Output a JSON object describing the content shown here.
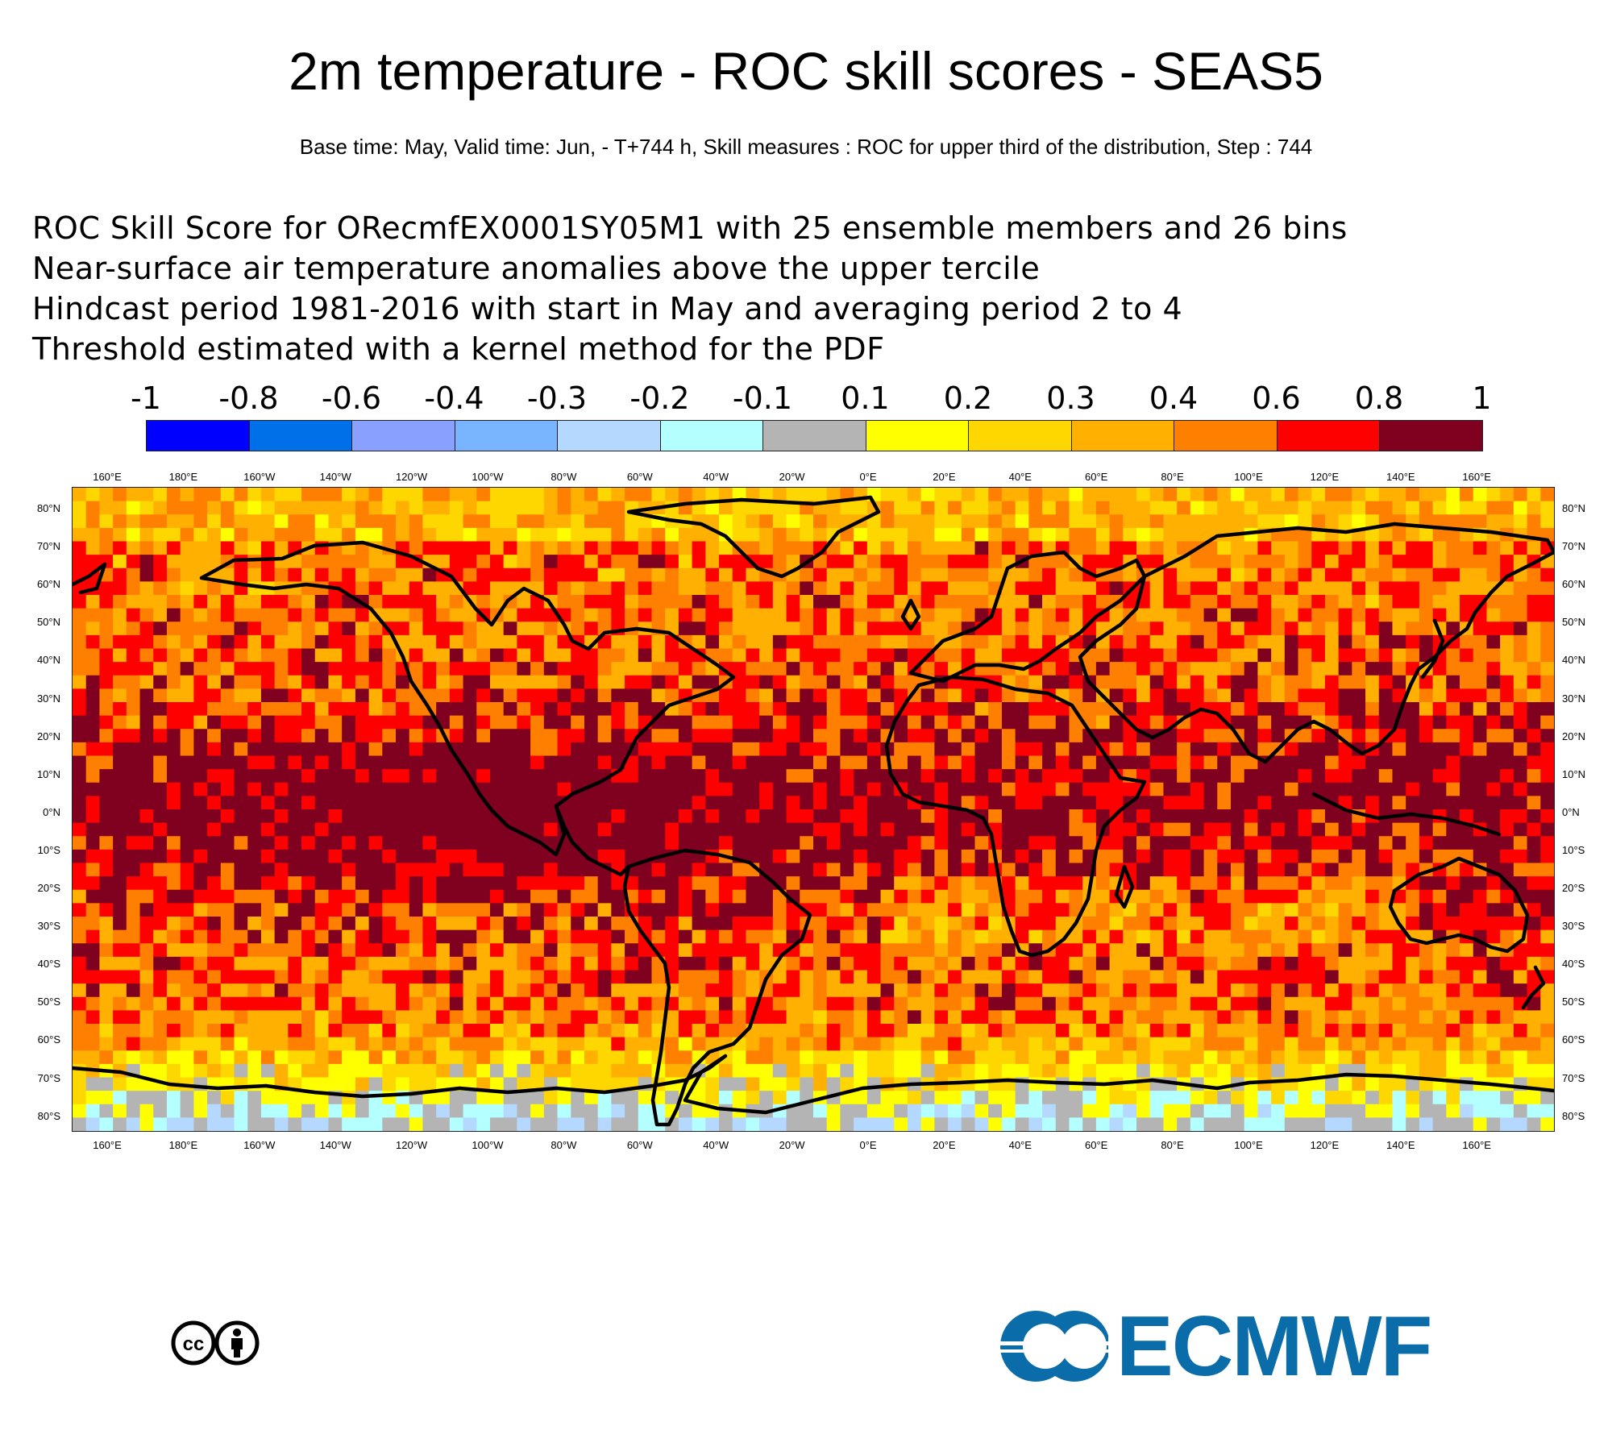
{
  "header": {
    "title": "2m temperature - ROC skill scores - SEAS5",
    "subtitle": "Base time: May, Valid time: Jun, - T+744 h, Skill measures : ROC for upper third of the distribution, Step : 744"
  },
  "description": [
    "ROC Skill Score for ORecmfEX0001SY05M1 with 25 ensemble members and 26 bins",
    "Near-surface air temperature anomalies above the upper tercile",
    "Hindcast period 1981-2016 with start in May and averaging period  2 to  4",
    "Threshold estimated with a kernel method for the PDF"
  ],
  "colorbar": {
    "labels": [
      "-1",
      "-0.8",
      "-0.6",
      "-0.4",
      "-0.3",
      "-0.2",
      "-0.1",
      "0.1",
      "0.2",
      "0.3",
      "0.4",
      "0.6",
      "0.8",
      "1"
    ],
    "colors": [
      "#0000ff",
      "#0070e8",
      "#8aa0ff",
      "#78b4ff",
      "#b4d8ff",
      "#b4ffff",
      "#b4b4b4",
      "#ffff00",
      "#ffd700",
      "#ffb000",
      "#ff8000",
      "#ff0000",
      "#800020"
    ]
  },
  "map": {
    "lon_labels": [
      "160°E",
      "180°E",
      "160°W",
      "140°W",
      "120°W",
      "100°W",
      "80°W",
      "60°W",
      "40°W",
      "20°W",
      "0°E",
      "20°E",
      "40°E",
      "60°E",
      "80°E",
      "100°E",
      "120°E",
      "140°E",
      "160°E"
    ],
    "lat_labels": [
      "80°N",
      "70°N",
      "60°N",
      "50°N",
      "40°N",
      "30°N",
      "20°N",
      "10°N",
      "0°N",
      "10°S",
      "20°S",
      "30°S",
      "40°S",
      "50°S",
      "60°S",
      "70°S",
      "80°S"
    ],
    "lon_range": [
      -200,
      190
    ],
    "lat_range": [
      85,
      -85
    ],
    "grid_step_deg": 3.5
  },
  "footer": {
    "logo_text": "ECMWF",
    "license_icons": [
      "cc-icon",
      "by-icon"
    ]
  }
}
